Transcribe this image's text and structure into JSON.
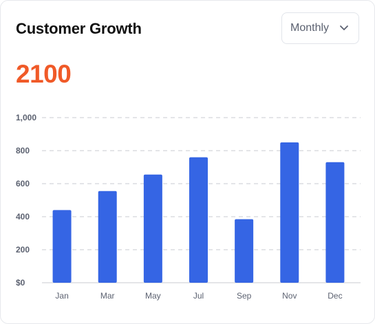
{
  "card": {
    "title": "Customer Growth",
    "summary_value": "2100",
    "period_select": {
      "selected": "Monthly",
      "icon": "chevron-down-icon"
    }
  },
  "colors": {
    "bar": "#3565e4",
    "summary_value": "#f05a28",
    "grid": "#c8cbd2"
  },
  "chart_data": {
    "type": "bar",
    "categories": [
      "Jan",
      "Mar",
      "May",
      "Jul",
      "Sep",
      "Nov",
      "Dec"
    ],
    "values": [
      440,
      555,
      655,
      760,
      385,
      850,
      730
    ],
    "ylim": [
      0,
      1000
    ],
    "yticks": [
      0,
      200,
      400,
      600,
      800,
      1000
    ],
    "ytick_labels": [
      "$0",
      "200",
      "400",
      "600",
      "800",
      "1,000"
    ],
    "grid": "dashed horizontal",
    "legend": "none"
  }
}
